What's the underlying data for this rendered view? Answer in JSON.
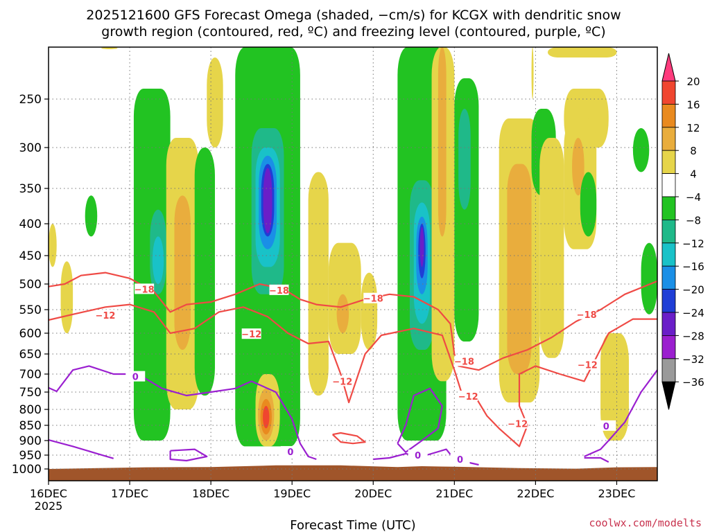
{
  "chart_data": {
    "type": "heatmap",
    "title_line1": "2025121600 GFS Forecast Omega (shaded, −cm/s) for KCGX with dendritic snow",
    "title_line2": "growth region (contoured, red, ºC) and freezing level (contoured, purple, ºC)",
    "xlabel": "Forecast Time (UTC)",
    "credit": "coolwx.com/modelts",
    "x_ticks": [
      {
        "day": 16,
        "label": "16DEC",
        "sub": "2025"
      },
      {
        "day": 17,
        "label": "17DEC"
      },
      {
        "day": 18,
        "label": "18DEC"
      },
      {
        "day": 19,
        "label": "19DEC"
      },
      {
        "day": 20,
        "label": "20DEC"
      },
      {
        "day": 21,
        "label": "21DEC"
      },
      {
        "day": 22,
        "label": "22DEC"
      },
      {
        "day": 23,
        "label": "23DEC"
      }
    ],
    "xlim_days": [
      16,
      23.5
    ],
    "y_ticks": [
      250,
      300,
      350,
      400,
      450,
      500,
      550,
      600,
      650,
      700,
      750,
      800,
      850,
      900,
      950,
      1000
    ],
    "ylim_hpa": [
      200,
      1010
    ],
    "colorbar": {
      "labels": [
        "20",
        "16",
        "12",
        "8",
        "4",
        "−4",
        "−8",
        "−12",
        "−16",
        "−20",
        "−24",
        "−28",
        "−32",
        "−36"
      ],
      "colors": [
        "#ff3b7d",
        "#f0462f",
        "#e98a1f",
        "#e9ad3d",
        "#e6d54a",
        "#ffffff",
        "#22c322",
        "#1fb989",
        "#19c2c8",
        "#1a8fe6",
        "#1f3ed6",
        "#6a1ec8",
        "#9b1fcf",
        "#9a9a9a",
        "#000000"
      ]
    },
    "contours": {
      "dgz_color": "#ef4a45",
      "freezing_color": "#9a1fd0",
      "dgz_labels": [
        {
          "text": "−18",
          "day": 17.18,
          "p": 510
        },
        {
          "text": "−12",
          "day": 16.7,
          "p": 562
        },
        {
          "text": "−18",
          "day": 18.84,
          "p": 512
        },
        {
          "text": "−12",
          "day": 18.5,
          "p": 602
        },
        {
          "text": "−18",
          "day": 20.0,
          "p": 528
        },
        {
          "text": "−12",
          "day": 19.62,
          "p": 720
        },
        {
          "text": "−18",
          "day": 21.12,
          "p": 668
        },
        {
          "text": "−12",
          "day": 21.17,
          "p": 762
        },
        {
          "text": "−12",
          "day": 21.78,
          "p": 845
        },
        {
          "text": "−18",
          "day": 22.63,
          "p": 560
        },
        {
          "text": "−12",
          "day": 22.64,
          "p": 677
        }
      ],
      "freezing_labels": [
        {
          "text": "0",
          "day": 17.07,
          "p": 707
        },
        {
          "text": "0",
          "day": 18.98,
          "p": 938
        },
        {
          "text": "0",
          "day": 20.55,
          "p": 950
        },
        {
          "text": "0",
          "day": 21.07,
          "p": 965
        },
        {
          "text": "0",
          "day": 22.87,
          "p": 852
        }
      ]
    }
  }
}
